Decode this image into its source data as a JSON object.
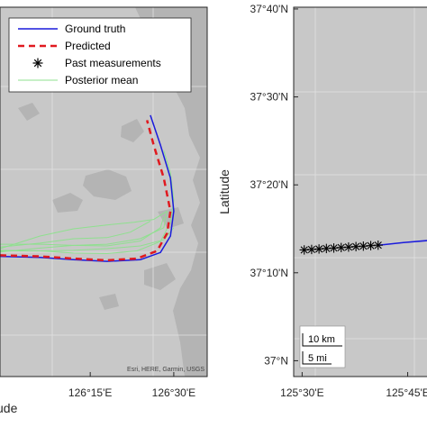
{
  "chart_data": [
    {
      "type": "line",
      "panel": "left",
      "xlabel": "",
      "ylabel": "",
      "x_ticks": [
        "126°15'E",
        "126°30'E"
      ],
      "x_tick_lon": [
        126.25,
        126.5
      ],
      "xlim": [
        125.98,
        126.6
      ],
      "ylim": [
        37.0,
        37.67
      ],
      "cut_label_fragment": "ude",
      "attribution": "Esri, HERE, Garmin, USGS",
      "colors": {
        "Ground truth": "#1a1adc",
        "Predicted": "#e0191f",
        "Posterior mean": "#8fe08f",
        "map_bg": "#c8c8c8",
        "land": "#b4b4b4"
      },
      "legend": {
        "placement": "top-left",
        "entries": [
          "Ground truth",
          "Predicted",
          "Past measurements",
          "Posterior mean"
        ]
      },
      "series": [
        {
          "name": "Ground truth",
          "points": [
            [
              125.98,
              37.218
            ],
            [
              126.1,
              37.216
            ],
            [
              126.2,
              37.212
            ],
            [
              126.3,
              37.209
            ],
            [
              126.4,
              37.212
            ],
            [
              126.46,
              37.225
            ],
            [
              126.49,
              37.255
            ],
            [
              126.5,
              37.3
            ],
            [
              126.49,
              37.36
            ],
            [
              126.46,
              37.42
            ],
            [
              126.43,
              37.474
            ]
          ]
        },
        {
          "name": "Predicted",
          "points": [
            [
              125.98,
              37.22
            ],
            [
              126.1,
              37.218
            ],
            [
              126.2,
              37.214
            ],
            [
              126.3,
              37.211
            ],
            [
              126.39,
              37.214
            ],
            [
              126.45,
              37.228
            ],
            [
              126.48,
              37.26
            ],
            [
              126.49,
              37.3
            ],
            [
              126.47,
              37.36
            ],
            [
              126.44,
              37.42
            ],
            [
              126.42,
              37.465
            ]
          ]
        },
        {
          "name": "Posterior mean",
          "tracks": [
            [
              [
                125.98,
                37.24
              ],
              [
                126.1,
                37.24
              ],
              [
                126.2,
                37.238
              ],
              [
                126.3,
                37.237
              ],
              [
                126.4,
                37.246
              ],
              [
                126.46,
                37.27
              ],
              [
                126.47,
                37.29
              ]
            ],
            [
              [
                125.98,
                37.232
              ],
              [
                126.1,
                37.255
              ],
              [
                126.2,
                37.268
              ],
              [
                126.3,
                37.275
              ],
              [
                126.38,
                37.28
              ],
              [
                126.44,
                37.285
              ],
              [
                126.48,
                37.3
              ]
            ],
            [
              [
                125.98,
                37.226
              ],
              [
                126.1,
                37.233
              ],
              [
                126.2,
                37.238
              ],
              [
                126.3,
                37.24
              ],
              [
                126.4,
                37.25
              ],
              [
                126.47,
                37.27
              ],
              [
                126.48,
                37.3
              ]
            ],
            [
              [
                125.98,
                37.235
              ],
              [
                126.1,
                37.242
              ],
              [
                126.2,
                37.25
              ],
              [
                126.3,
                37.252
              ],
              [
                126.37,
                37.262
              ],
              [
                126.43,
                37.282
              ]
            ],
            [
              [
                125.98,
                37.228
              ],
              [
                126.1,
                37.228
              ],
              [
                126.2,
                37.229
              ],
              [
                126.3,
                37.232
              ],
              [
                126.4,
                37.237
              ],
              [
                126.47,
                37.248
              ],
              [
                126.5,
                37.27
              ]
            ],
            [
              [
                125.98,
                37.229
              ],
              [
                126.1,
                37.228
              ],
              [
                126.2,
                37.224
              ],
              [
                126.3,
                37.223
              ],
              [
                126.39,
                37.228
              ],
              [
                126.46,
                37.245
              ],
              [
                126.49,
                37.28
              ],
              [
                126.5,
                37.32
              ],
              [
                126.49,
                37.37
              ],
              [
                126.47,
                37.41
              ]
            ]
          ]
        }
      ]
    },
    {
      "type": "scatter",
      "panel": "right",
      "xlabel": "",
      "ylabel": "Latitude",
      "x_ticks": [
        "125°30'E",
        "125°45'E"
      ],
      "x_tick_lon": [
        125.5,
        125.75
      ],
      "y_ticks": [
        "37°N",
        "37°10'N",
        "37°20'N",
        "37°30'N",
        "37°40'N"
      ],
      "y_tick_lat": [
        37.0,
        37.1667,
        37.3333,
        37.5,
        37.6667
      ],
      "xlim": [
        125.48,
        125.8
      ],
      "ylim": [
        36.97,
        37.67
      ],
      "scalebar": [
        "10 km",
        "5 mi"
      ],
      "series": [
        {
          "name": "Past measurements",
          "points": [
            [
              125.505,
              37.21
            ],
            [
              125.5225,
              37.2109
            ],
            [
              125.54,
              37.2118
            ],
            [
              125.5575,
              37.2127
            ],
            [
              125.575,
              37.2136
            ],
            [
              125.5925,
              37.2145
            ],
            [
              125.61,
              37.2154
            ],
            [
              125.6275,
              37.2163
            ],
            [
              125.645,
              37.2172
            ],
            [
              125.6625,
              37.2181
            ],
            [
              125.68,
              37.219
            ]
          ]
        },
        {
          "name": "Ground truth",
          "points": [
            [
              125.68,
              37.219
            ],
            [
              125.74,
              37.224
            ],
            [
              125.8,
              37.228
            ]
          ]
        }
      ]
    }
  ]
}
